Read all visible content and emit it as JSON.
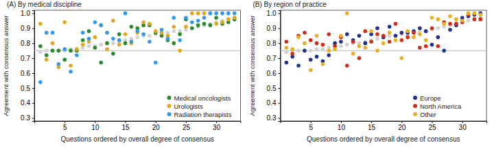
{
  "chart_data": [
    {
      "type": "scatter",
      "title": "(A) By medical discipline",
      "x_label": "Questions ordered by overall degree of consensus",
      "y_label": "Agreement with consensus answer",
      "x": [
        1,
        2,
        3,
        4,
        5,
        6,
        7,
        8,
        9,
        10,
        11,
        12,
        13,
        14,
        15,
        16,
        17,
        18,
        19,
        20,
        21,
        22,
        23,
        24,
        25,
        26,
        27,
        28,
        29,
        30,
        31,
        32,
        33
      ],
      "series": [
        {
          "color": "#d3d3d3",
          "values": [
            0.74,
            0.75,
            0.75,
            0.75,
            0.75,
            0.76,
            0.76,
            0.77,
            0.78,
            0.78,
            0.79,
            0.8,
            0.8,
            0.81,
            0.82,
            0.83,
            0.84,
            0.85,
            0.85,
            0.86,
            0.86,
            0.87,
            0.88,
            0.88,
            0.89,
            0.9,
            0.91,
            0.92,
            0.93,
            0.94,
            0.95,
            0.96,
            0.97
          ]
        },
        {
          "name": "Medical oncologists",
          "color": "#2a8a2a",
          "values": [
            0.78,
            0.72,
            0.75,
            0.75,
            0.69,
            0.75,
            0.75,
            0.82,
            0.88,
            0.77,
            0.67,
            0.8,
            0.73,
            0.86,
            0.8,
            0.91,
            0.9,
            0.92,
            0.92,
            0.87,
            0.85,
            0.82,
            0.8,
            0.86,
            0.96,
            0.9,
            0.92,
            0.93,
            0.92,
            0.97,
            0.93,
            0.94,
            0.96
          ]
        },
        {
          "name": "Urologists",
          "color": "#e0a820",
          "values": [
            0.93,
            0.69,
            0.8,
            0.64,
            0.94,
            0.65,
            0.76,
            0.79,
            0.81,
            0.84,
            0.92,
            0.76,
            0.95,
            0.79,
            0.86,
            0.8,
            0.87,
            0.94,
            0.93,
            0.88,
            0.87,
            0.85,
            0.91,
            0.75,
            0.91,
            1.0,
            1.0,
            1.0,
            1.0,
            0.93,
            0.94,
            0.96,
            0.97
          ]
        },
        {
          "name": "Radiation therapists",
          "color": "#3399ee",
          "values": [
            0.54,
            0.87,
            0.87,
            0.66,
            0.76,
            0.61,
            0.72,
            0.87,
            0.83,
            0.94,
            0.92,
            0.87,
            0.83,
            0.82,
            1.0,
            0.81,
            0.88,
            0.86,
            0.81,
            0.67,
            0.89,
            0.83,
            0.97,
            0.82,
            0.97,
            0.94,
            0.95,
            0.97,
            1.0,
            1.0,
            1.0,
            1.0,
            1.0
          ]
        }
      ],
      "xlim": [
        0,
        34
      ],
      "ylim": [
        0.28,
        1.02
      ],
      "xticks": [
        5,
        10,
        15,
        20,
        25,
        30
      ],
      "yticks": [
        0.3,
        0.4,
        0.5,
        0.6,
        0.7,
        0.8,
        0.9,
        {
          "value": 1,
          "label": "1.0"
        }
      ],
      "reference_line": 0.75,
      "legend": "lower right"
    },
    {
      "type": "scatter",
      "title": "(B) By region of practice",
      "x_label": "Questions ordered by overall degree of consensus",
      "y_label": "Agreement with consensus answer",
      "x": [
        1,
        2,
        3,
        4,
        5,
        6,
        7,
        8,
        9,
        10,
        11,
        12,
        13,
        14,
        15,
        16,
        17,
        18,
        19,
        20,
        21,
        22,
        23,
        24,
        25,
        26,
        27,
        28,
        29,
        30,
        31,
        32,
        33
      ],
      "series": [
        {
          "color": "#d3d3d3",
          "values": [
            0.74,
            0.75,
            0.75,
            0.75,
            0.75,
            0.76,
            0.76,
            0.77,
            0.78,
            0.78,
            0.79,
            0.8,
            0.8,
            0.81,
            0.82,
            0.83,
            0.84,
            0.85,
            0.85,
            0.86,
            0.86,
            0.87,
            0.88,
            0.88,
            0.89,
            0.9,
            0.91,
            0.92,
            0.93,
            0.94,
            0.95,
            0.96,
            0.97
          ]
        },
        {
          "name": "Europe",
          "color": "#1f2f8f",
          "values": [
            0.67,
            0.71,
            0.65,
            0.75,
            0.69,
            0.71,
            0.68,
            0.72,
            0.8,
            0.81,
            0.86,
            0.82,
            0.85,
            0.8,
            0.86,
            0.9,
            0.84,
            0.91,
            0.85,
            0.87,
            0.87,
            0.88,
            0.9,
            0.88,
            0.79,
            0.84,
            0.75,
            0.89,
            0.92,
            0.97,
            0.98,
            0.99,
            1.0
          ]
        },
        {
          "name": "North America",
          "color": "#d42a1a",
          "values": [
            0.81,
            0.73,
            0.85,
            0.87,
            0.82,
            0.8,
            0.79,
            0.86,
            0.78,
            0.84,
            0.65,
            0.81,
            0.7,
            0.88,
            0.81,
            0.86,
            0.85,
            0.81,
            0.93,
            0.82,
            0.84,
            0.87,
            0.77,
            0.78,
            0.9,
            0.78,
            0.94,
            0.93,
            0.93,
            0.94,
            0.99,
            0.96,
            0.96
          ]
        },
        {
          "name": "Other",
          "color": "#e8b020",
          "values": [
            0.77,
            0.76,
            0.84,
            0.8,
            0.62,
            0.85,
            0.66,
            0.75,
            0.76,
            0.85,
            1.0,
            0.73,
            0.78,
            0.77,
            0.88,
            0.75,
            0.8,
            0.87,
            0.82,
            0.7,
            0.88,
            0.84,
            0.86,
            0.82,
            0.97,
            0.96,
            0.93,
            0.98,
            0.96,
            0.95,
            1.0,
            1.0,
            0.99
          ]
        }
      ],
      "xlim": [
        0,
        34
      ],
      "ylim": [
        0.28,
        1.02
      ],
      "xticks": [
        5,
        10,
        15,
        20,
        25,
        30
      ],
      "yticks": [
        0.3,
        0.4,
        0.5,
        0.6,
        0.7,
        0.8,
        0.9,
        {
          "value": 1,
          "label": "1.0"
        }
      ],
      "reference_line": 0.75,
      "legend": "lower right"
    }
  ]
}
